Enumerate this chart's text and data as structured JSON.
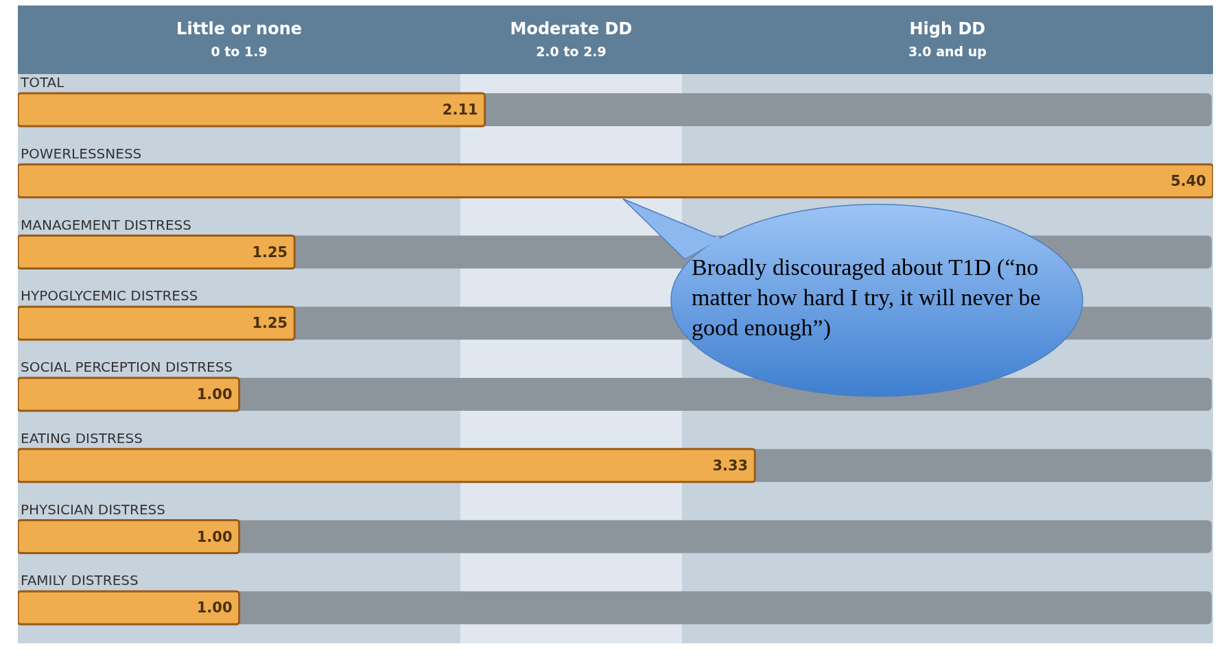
{
  "chart_data": {
    "type": "bar",
    "orientation": "horizontal",
    "categories": [
      "TOTAL",
      "POWERLESSNESS",
      "MANAGEMENT DISTRESS",
      "HYPOGLYCEMIC DISTRESS",
      "SOCIAL PERCEPTION DISTRESS",
      "EATING DISTRESS",
      "PHYSICIAN DISTRESS",
      "FAMILY DISTRESS"
    ],
    "values": [
      2.11,
      5.4,
      1.25,
      1.25,
      1.0,
      3.33,
      1.0,
      1.0
    ],
    "value_labels": [
      "2.11",
      "5.40",
      "1.25",
      "1.25",
      "1.00",
      "3.33",
      "1.00",
      "1.00"
    ],
    "color": "#f0ad4e",
    "bands": [
      {
        "axis": "x",
        "from": 0,
        "to": 2.0,
        "label": "Little or none\n0 to 1.9",
        "color": "#c6d2dc"
      },
      {
        "axis": "x",
        "from": 2.0,
        "to": 3.0,
        "label": "Moderate DD\n2.0 to 2.9",
        "color": "#e1e7ee"
      },
      {
        "axis": "x",
        "from": 3.0,
        "to": 5.4,
        "label": "High DD\n3.0 and up",
        "color": "#c6d2dc"
      }
    ],
    "annotations": [
      "Broadly discouraged about T1D (“no matter how hard I try, it will never be good enough”)"
    ],
    "tick_labels": "y"
  }
}
